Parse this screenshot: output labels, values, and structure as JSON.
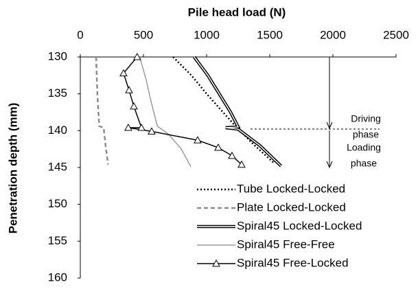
{
  "chart_data": {
    "type": "line",
    "title": "Pile head load (N)",
    "y_label": "Penetration depth (mm)",
    "xlim": [
      0,
      2500
    ],
    "xticks": [
      0,
      500,
      1000,
      1500,
      2000,
      2500
    ],
    "ylim": [
      130,
      160
    ],
    "yticks": [
      130,
      135,
      140,
      145,
      150,
      155,
      160
    ],
    "y_inverted": true,
    "x_axis_position": "top",
    "legend": "lower right",
    "annotations": [
      "Driving",
      "phase",
      "Loading",
      "phase"
    ],
    "series": [
      {
        "name": "Tube Locked-Locked",
        "color": "#000000",
        "style": "dotted",
        "x": [
          735,
          880,
          1000,
          1130,
          1240,
          1380,
          1540
        ],
        "values": [
          130,
          132.5,
          135,
          137.5,
          139.6,
          142,
          144.5
        ]
      },
      {
        "name": "Plate Locked-Locked",
        "color": "#8c8c8c",
        "style": "dashed",
        "x": [
          125,
          135,
          150,
          185,
          200,
          220
        ],
        "values": [
          130,
          135,
          139.4,
          139.6,
          142,
          144.6
        ]
      },
      {
        "name": "Spiral45 Locked-Locked",
        "color": "#000000",
        "style": "double",
        "x": [
          902,
          1010,
          1100,
          1190,
          1250,
          1150,
          1250,
          1420,
          1590
        ],
        "values": [
          130,
          132.5,
          135,
          137.5,
          139.5,
          139.6,
          139.8,
          142,
          144.8
        ]
      },
      {
        "name": "Spiral45 Free-Free",
        "color": "#9a9a9a",
        "style": "solid",
        "x": [
          470,
          520,
          560,
          610,
          700,
          800,
          875
        ],
        "values": [
          130,
          133,
          136,
          139.4,
          140.5,
          142.5,
          144.9
        ]
      },
      {
        "name": "Spiral45 Free-Locked",
        "color": "#000000",
        "style": "solid",
        "marker": "triangle",
        "x": [
          450,
          342,
          386,
          424,
          484,
          380,
          565,
          929,
          1092,
          1201,
          1277
        ],
        "values": [
          130,
          132.2,
          134.5,
          136.7,
          139.6,
          139.6,
          140.1,
          141.3,
          142.3,
          143.4,
          144.6
        ]
      }
    ]
  }
}
